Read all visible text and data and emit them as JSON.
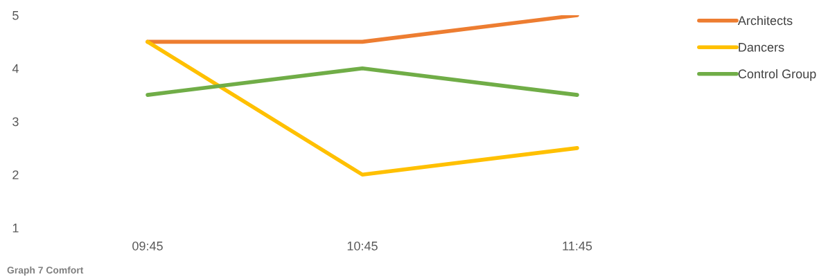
{
  "chart_data": {
    "type": "line",
    "title": "Graph 7 Comfort",
    "categories": [
      "09:45",
      "10:45",
      "11:45"
    ],
    "series": [
      {
        "name": "Architects",
        "color": "#ed7d31",
        "values": [
          4.5,
          4.5,
          5
        ]
      },
      {
        "name": "Dancers",
        "color": "#ffc000",
        "values": [
          4.5,
          2,
          2.5
        ]
      },
      {
        "name": "Control Group",
        "color": "#70ad47",
        "values": [
          3.5,
          4,
          3.5
        ]
      }
    ],
    "ylim": [
      1,
      5
    ],
    "yticks": [
      1,
      2,
      3,
      4,
      5
    ],
    "grid": false,
    "legend": "top right",
    "marker": "none",
    "line_style": "solid"
  }
}
